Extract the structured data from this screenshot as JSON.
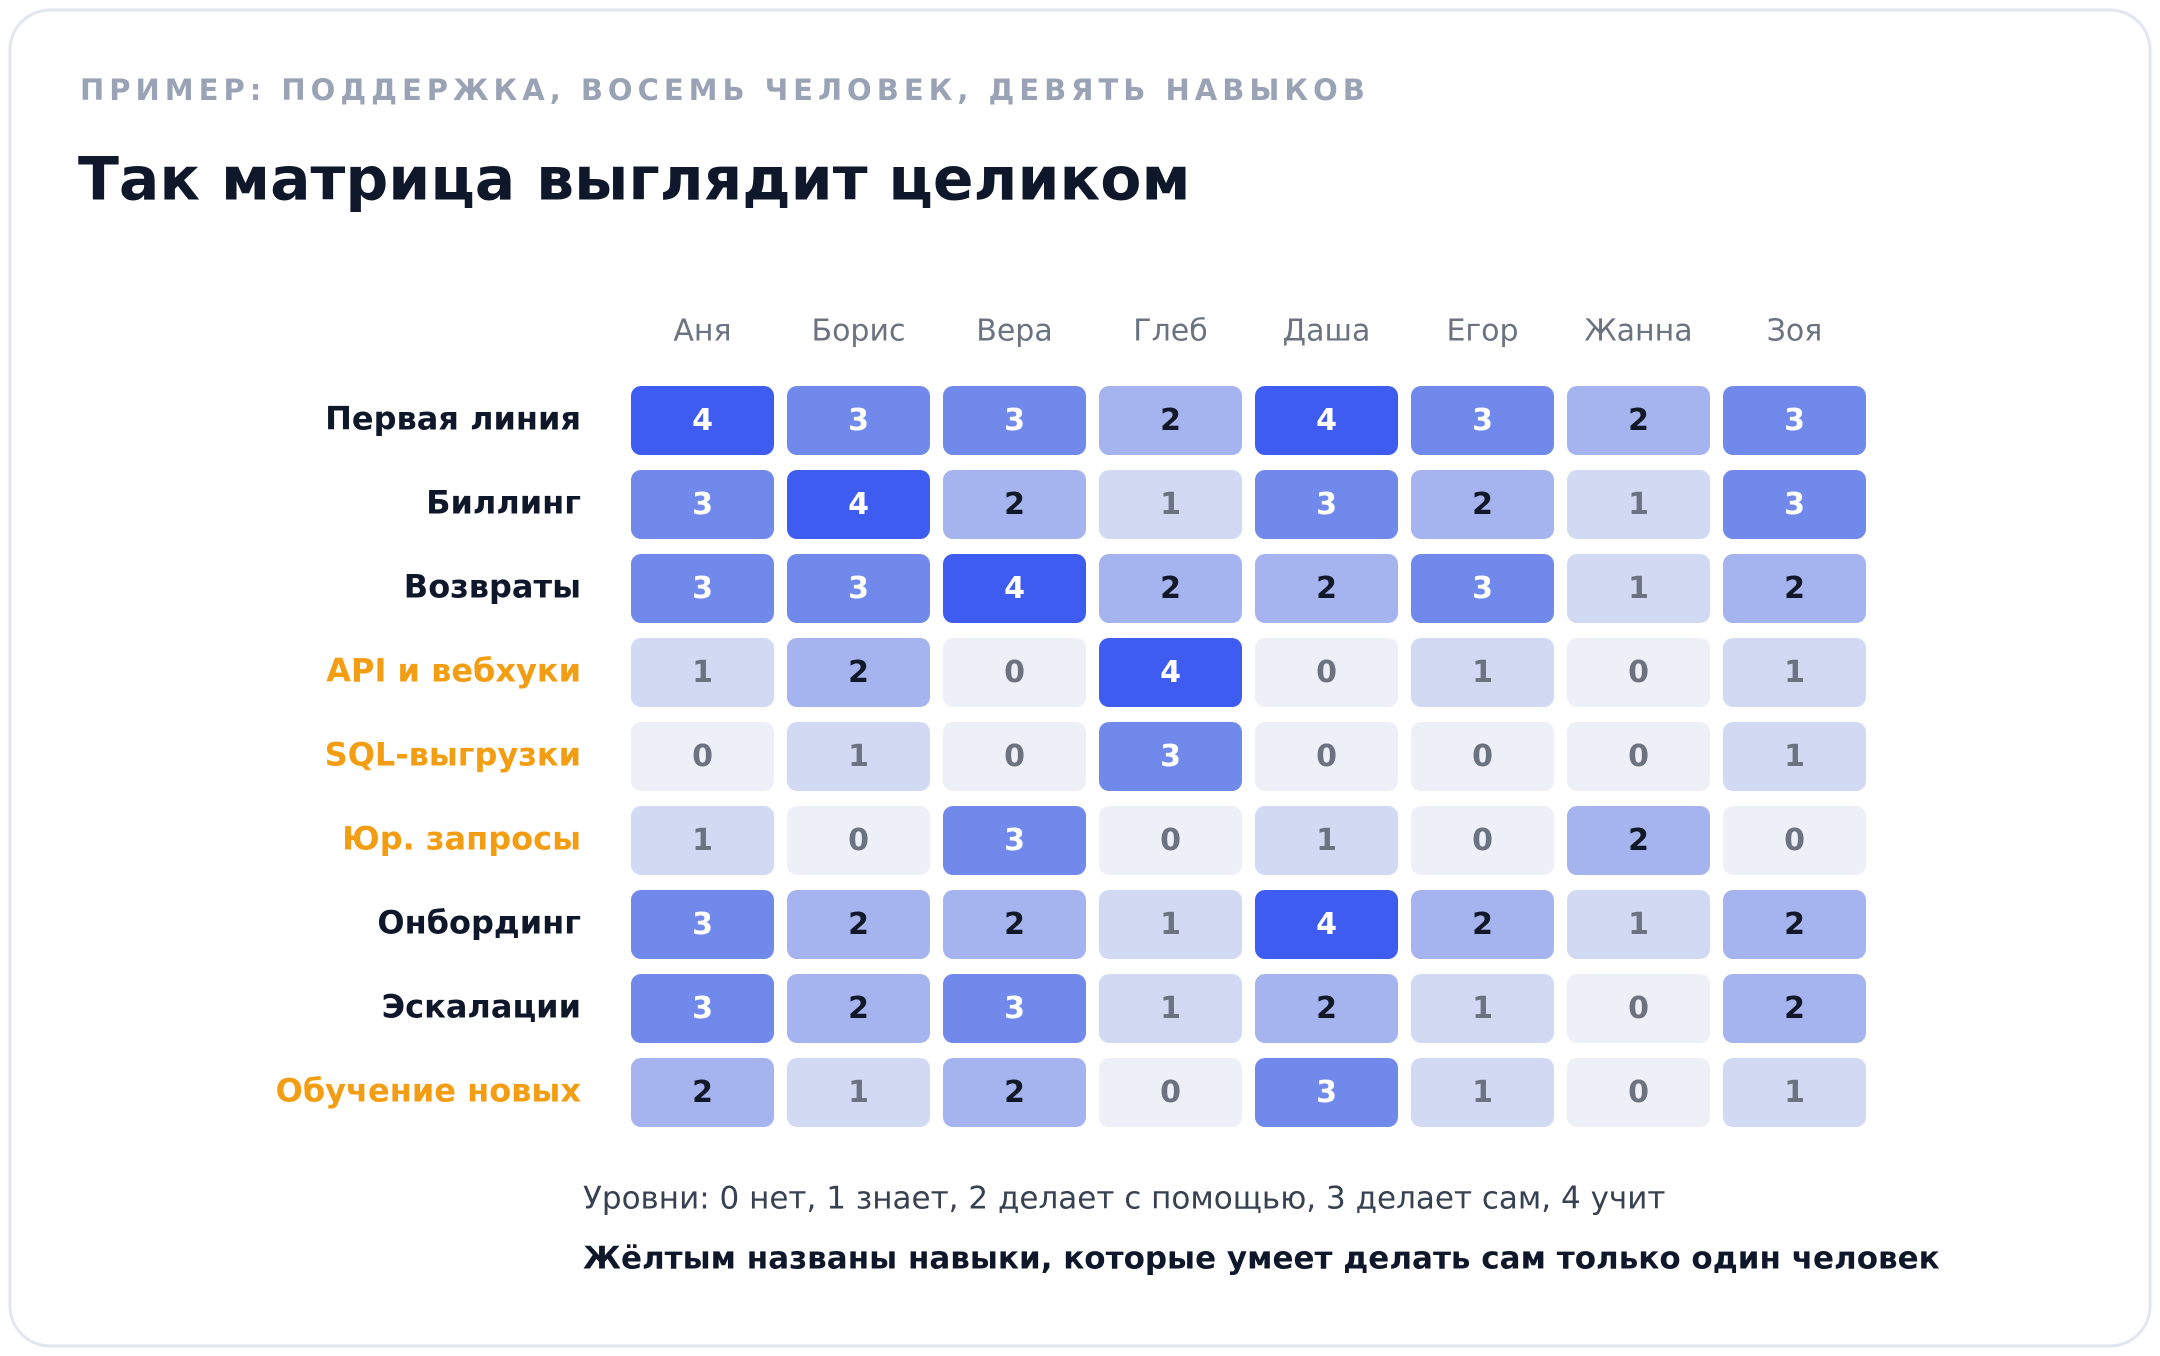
{
  "chart_data": {
    "type": "heatmap",
    "subtitle": "ПРИМЕР: ПОДДЕРЖКА, ВОСЕМЬ ЧЕЛОВЕК, ДЕВЯТЬ НАВЫКОВ",
    "title": "Так матрица выглядит целиком",
    "columns": [
      "Аня",
      "Борис",
      "Вера",
      "Глеб",
      "Даша",
      "Егор",
      "Жанна",
      "Зоя"
    ],
    "rows": [
      "Первая линия",
      "Биллинг",
      "Возвраты",
      "API и вебхуки",
      "SQL-выгрузки",
      "Юр. запросы",
      "Онбординг",
      "Эскалации",
      "Обучение новых"
    ],
    "highlighted": [
      false,
      false,
      false,
      true,
      true,
      true,
      false,
      false,
      true
    ],
    "values": [
      [
        4,
        3,
        3,
        2,
        4,
        3,
        2,
        3
      ],
      [
        3,
        4,
        2,
        1,
        3,
        2,
        1,
        3
      ],
      [
        3,
        3,
        4,
        2,
        2,
        3,
        1,
        2
      ],
      [
        1,
        2,
        0,
        4,
        0,
        1,
        0,
        1
      ],
      [
        0,
        1,
        0,
        3,
        0,
        0,
        0,
        1
      ],
      [
        1,
        0,
        3,
        0,
        1,
        0,
        2,
        0
      ],
      [
        3,
        2,
        2,
        1,
        4,
        2,
        1,
        2
      ],
      [
        3,
        2,
        3,
        1,
        2,
        1,
        0,
        2
      ],
      [
        2,
        1,
        2,
        0,
        3,
        1,
        0,
        1
      ]
    ],
    "level_colors": [
      "#eef0f7",
      "#d2d9f3",
      "#a5b3ee",
      "#7189eb",
      "#3e5df0"
    ],
    "level_text_colors": [
      "#6b7280",
      "#6b7280",
      "#111827",
      "#ffffff",
      "#ffffff"
    ],
    "highlight_color": "#f29d12",
    "legend": "Уровни: 0 нет, 1 знает, 2 делает с помощью, 3 делает сам, 4 учит",
    "note": "Жёлтым названы навыки, которые умеет делать сам только один человек"
  }
}
